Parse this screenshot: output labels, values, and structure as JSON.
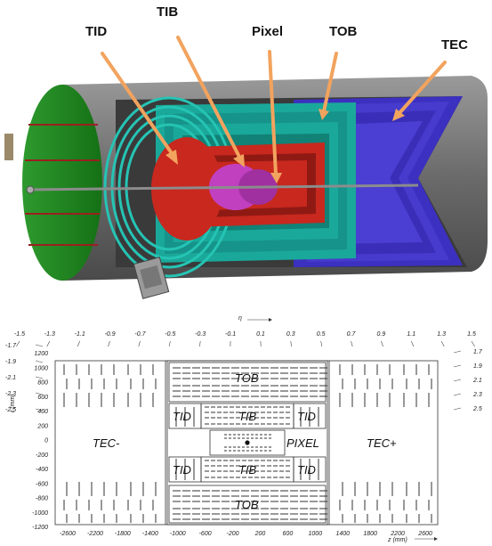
{
  "callouts": {
    "tid": "TID",
    "tib": "TIB",
    "pixel": "Pixel",
    "tob": "TOB",
    "tec": "TEC"
  },
  "regions": {
    "tob": "TOB",
    "tid": "TID",
    "tib": "TIB",
    "pixel": "PIXEL",
    "tec_minus": "TEC-",
    "tec_plus": "TEC+"
  },
  "axes": {
    "eta_label": "η",
    "r_label": "r (mm)",
    "z_label": "z (mm)",
    "eta_ticks": [
      "-1.5",
      "-1.3",
      "-1.1",
      "-0.9",
      "-0.7",
      "-0.5",
      "-0.3",
      "-0.1",
      "0.1",
      "0.3",
      "0.5",
      "0.7",
      "0.9",
      "1.1",
      "1.3",
      "1.5"
    ],
    "eta_left": [
      "-1.7",
      "-1.9",
      "-2.1",
      "-2.3",
      "-2.5"
    ],
    "eta_right": [
      "1.7",
      "1.9",
      "2.1",
      "2.3",
      "2.5"
    ],
    "r_ticks": [
      "1200",
      "1000",
      "800",
      "600",
      "400",
      "200",
      "0",
      "-200",
      "-400",
      "-600",
      "-800",
      "-1000",
      "-1200"
    ],
    "z_ticks": [
      "-2600",
      "-2200",
      "-1800",
      "-1400",
      "-1000",
      "-600",
      "-200",
      "200",
      "600",
      "1000",
      "1400",
      "1800",
      "2200",
      "2600"
    ]
  },
  "colors": {
    "tid": "#c8281e",
    "tib": "#c8281e",
    "pixel": "#c040c0",
    "tob": "#1aa89a",
    "tec": "#3c30c0",
    "endcap": "#1f8a1f",
    "shell": "#6e6e6e",
    "arrow": "#f2a35e"
  }
}
